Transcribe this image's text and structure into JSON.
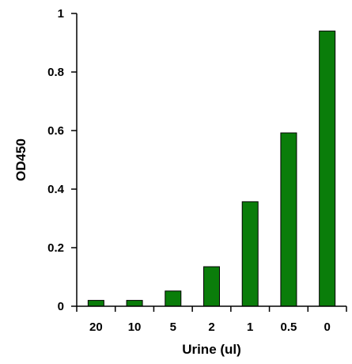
{
  "chart_data": {
    "type": "bar",
    "categories": [
      "20",
      "10",
      "5",
      "2",
      "1",
      "0.5",
      "0"
    ],
    "values": [
      0.02,
      0.02,
      0.052,
      0.135,
      0.357,
      0.592,
      0.94
    ],
    "xlabel": "Urine (ul)",
    "ylabel": "OD450",
    "ylim": [
      0,
      1
    ],
    "yticks": [
      "0",
      "0.2",
      "0.4",
      "0.6",
      "0.8",
      "1"
    ],
    "grid": false,
    "legend": "none",
    "bar_color": "#0a7d0a",
    "bar_edge_color": "#000000"
  }
}
